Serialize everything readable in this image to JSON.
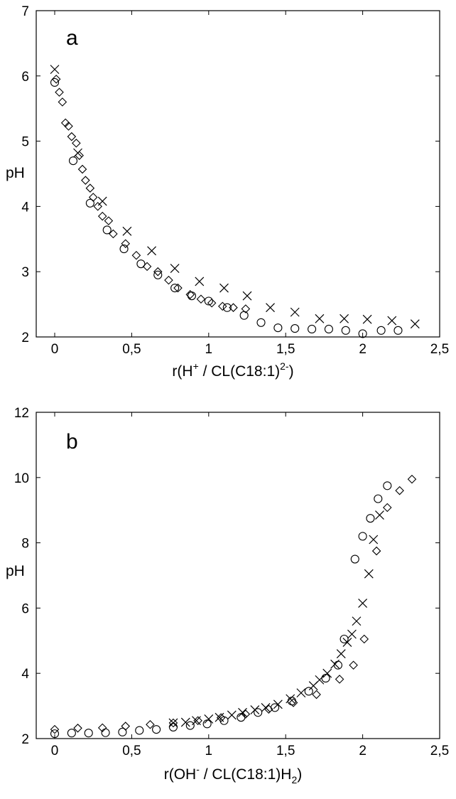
{
  "chart_data": [
    {
      "type": "scatter",
      "panel_label": "a",
      "xlabel": "r(H",
      "xlabel_sup": "+",
      "xlabel_rest": " / CL(C18:1)",
      "xlabel_sup2": "2-",
      "xlabel_end": ")",
      "ylabel": "pH",
      "xlim": [
        -0.12,
        2.5
      ],
      "ylim": [
        2,
        7
      ],
      "xticks": [
        "0",
        "0,5",
        "1",
        "1,5",
        "2",
        "2,5"
      ],
      "xtick_values": [
        0,
        0.5,
        1,
        1.5,
        2,
        2.5
      ],
      "yticks": [
        "2",
        "3",
        "4",
        "5",
        "6",
        "7"
      ],
      "ytick_values": [
        2,
        3,
        4,
        5,
        6,
        7
      ],
      "grid": false,
      "series": [
        {
          "marker": "x",
          "x": [
            0,
            0.15,
            0.31,
            0.47,
            0.63,
            0.78,
            0.94,
            1.1,
            1.25,
            1.4,
            1.56,
            1.72,
            1.88,
            2.03,
            2.19,
            2.34
          ],
          "y": [
            6.1,
            4.82,
            4.08,
            3.62,
            3.32,
            3.05,
            2.85,
            2.75,
            2.63,
            2.45,
            2.38,
            2.28,
            2.28,
            2.27,
            2.25,
            2.2
          ]
        },
        {
          "marker": "diamond",
          "x": [
            0.01,
            0.03,
            0.05,
            0.07,
            0.09,
            0.11,
            0.14,
            0.16,
            0.18,
            0.2,
            0.23,
            0.25,
            0.28,
            0.31,
            0.35,
            0.38,
            0.46,
            0.53,
            0.6,
            0.67,
            0.74,
            0.8,
            0.88,
            0.95,
            1.02,
            1.09,
            1.16,
            1.24
          ],
          "y": [
            5.95,
            5.75,
            5.6,
            5.28,
            5.23,
            5.07,
            4.97,
            4.78,
            4.57,
            4.4,
            4.28,
            4.14,
            4.0,
            3.85,
            3.78,
            3.58,
            3.43,
            3.25,
            3.08,
            3.0,
            2.87,
            2.75,
            2.65,
            2.58,
            2.52,
            2.47,
            2.45,
            2.43
          ]
        },
        {
          "marker": "circle",
          "x": [
            0,
            0.12,
            0.23,
            0.34,
            0.45,
            0.56,
            0.67,
            0.78,
            0.89,
            1.0,
            1.12,
            1.23,
            1.34,
            1.45,
            1.56,
            1.67,
            1.78,
            1.89,
            2.0,
            2.12,
            2.23
          ],
          "y": [
            5.9,
            4.7,
            4.05,
            3.64,
            3.35,
            3.12,
            2.95,
            2.75,
            2.63,
            2.55,
            2.45,
            2.33,
            2.22,
            2.14,
            2.13,
            2.12,
            2.12,
            2.1,
            2.05,
            2.1,
            2.1
          ]
        }
      ]
    },
    {
      "type": "scatter",
      "panel_label": "b",
      "xlabel": "r(OH",
      "xlabel_sup": "-",
      "xlabel_rest": " / CL(C18:1)H",
      "xlabel_sub": "2",
      "xlabel_end": ")",
      "ylabel": "pH",
      "xlim": [
        -0.12,
        2.5
      ],
      "ylim": [
        2,
        12
      ],
      "xticks": [
        "0",
        "0,5",
        "1",
        "1,5",
        "2",
        "2,5"
      ],
      "xtick_values": [
        0,
        0.5,
        1,
        1.5,
        2,
        2.5
      ],
      "yticks": [
        "2",
        "4",
        "6",
        "8",
        "10",
        "12"
      ],
      "ytick_values": [
        2,
        4,
        6,
        8,
        10,
        12
      ],
      "grid": false,
      "series": [
        {
          "marker": "x",
          "x": [
            0.77,
            0.85,
            0.92,
            1.0,
            1.07,
            1.15,
            1.22,
            1.3,
            1.37,
            1.45,
            1.53,
            1.6,
            1.68,
            1.72,
            1.77,
            1.82,
            1.86,
            1.9,
            1.93,
            1.96,
            2.0,
            2.04,
            2.07,
            2.11
          ],
          "y": [
            2.48,
            2.5,
            2.55,
            2.6,
            2.65,
            2.72,
            2.8,
            2.88,
            2.95,
            3.05,
            3.22,
            3.4,
            3.62,
            3.8,
            4.0,
            4.28,
            4.6,
            4.95,
            5.2,
            5.6,
            6.15,
            7.05,
            8.1,
            8.85
          ]
        },
        {
          "marker": "diamond",
          "x": [
            0,
            0.15,
            0.31,
            0.46,
            0.62,
            0.77,
            0.93,
            1.08,
            1.24,
            1.39,
            1.55,
            1.7,
            1.85,
            1.94,
            2.01,
            2.09,
            2.16,
            2.24,
            2.32
          ],
          "y": [
            2.28,
            2.32,
            2.33,
            2.38,
            2.43,
            2.48,
            2.55,
            2.64,
            2.75,
            2.9,
            3.1,
            3.35,
            3.82,
            4.25,
            5.05,
            7.75,
            9.08,
            9.6,
            9.95
          ]
        },
        {
          "marker": "circle",
          "x": [
            0,
            0.11,
            0.22,
            0.33,
            0.44,
            0.55,
            0.66,
            0.77,
            0.88,
            0.99,
            1.1,
            1.21,
            1.32,
            1.43,
            1.54,
            1.65,
            1.76,
            1.84,
            1.88,
            1.95,
            2.0,
            2.05,
            2.1,
            2.16
          ],
          "y": [
            2.15,
            2.17,
            2.17,
            2.18,
            2.2,
            2.25,
            2.28,
            2.35,
            2.4,
            2.45,
            2.55,
            2.65,
            2.8,
            2.95,
            3.15,
            3.45,
            3.85,
            4.25,
            5.05,
            7.5,
            8.2,
            8.75,
            9.35,
            9.75
          ]
        }
      ]
    }
  ]
}
